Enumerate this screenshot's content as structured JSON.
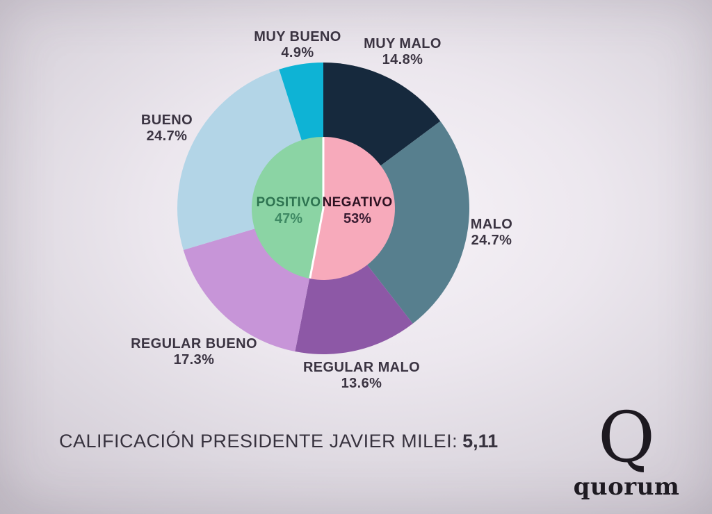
{
  "background": {
    "center_color": "#f7f3f8",
    "edge_color": "#ccc6cf"
  },
  "chart_data": {
    "type": "pie",
    "title": "CALIFICACIÓN PRESIDENTE JAVIER MILEI: 5,11",
    "layout_hint": "nested donut: outer ring of 6 detailed ratings, inner pie of positive/negative totals, both starting at 12 o'clock going clockwise; white divider lines on inner pie",
    "outer_slices": [
      {
        "label": "MUY MALO",
        "value": 14.8,
        "pct": "14.8%",
        "color": "#16293d"
      },
      {
        "label": "MALO",
        "value": 24.7,
        "pct": "24.7%",
        "color": "#577f8e"
      },
      {
        "label": "REGULAR MALO",
        "value": 13.6,
        "pct": "13.6%",
        "color": "#8d58a6"
      },
      {
        "label": "REGULAR BUENO",
        "value": 17.3,
        "pct": "17.3%",
        "color": "#c795d8"
      },
      {
        "label": "BUENO",
        "value": 24.7,
        "pct": "24.7%",
        "color": "#b3d5e7"
      },
      {
        "label": "MUY BUENO",
        "value": 4.9,
        "pct": "4.9%",
        "color": "#0eb3d5"
      }
    ],
    "inner_slices": [
      {
        "label": "NEGATIVO",
        "value": 53,
        "pct": "53%",
        "color": "#f7aabb",
        "label_color": "#2b1020",
        "pct_color": "#3a1c32"
      },
      {
        "label": "POSITIVO",
        "value": 47,
        "pct": "47%",
        "color": "#8bd4a4",
        "label_color": "#2d7350",
        "pct_color": "#3f8a64"
      }
    ],
    "divider_color": "#ffffff"
  },
  "footer": {
    "label": "CALIFICACIÓN PRESIDENTE JAVIER MILEI:",
    "value": "5,11"
  },
  "logo": {
    "mark": "Q",
    "text": "quorum"
  }
}
